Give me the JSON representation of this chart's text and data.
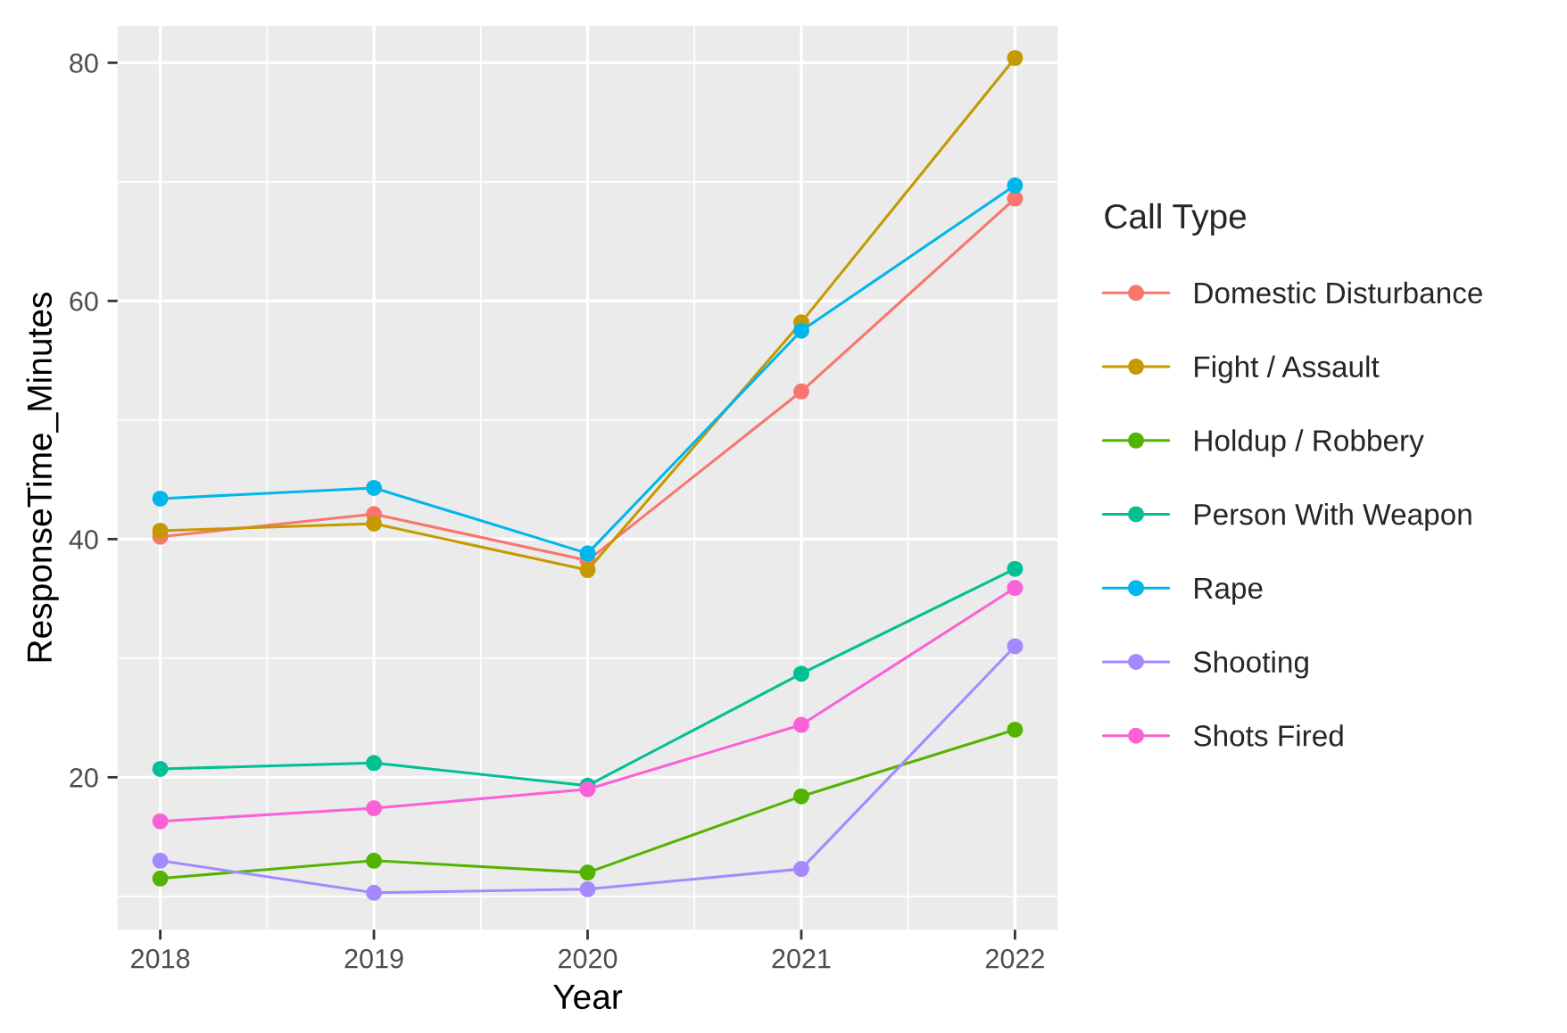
{
  "chart_data": {
    "type": "line",
    "xlabel": "Year",
    "ylabel": "ResponseTime_Minutes",
    "legend_title": "Call Type",
    "x": [
      2018,
      2019,
      2020,
      2021,
      2022
    ],
    "xlim": [
      2017.8,
      2022.2
    ],
    "xticks": [
      2018,
      2019,
      2020,
      2021,
      2022
    ],
    "ylim": [
      7.2,
      83.1
    ],
    "yticks": [
      20,
      40,
      60,
      80
    ],
    "grid": true,
    "legend": "right",
    "marker": "circle",
    "line_style": "solid",
    "series": [
      {
        "name": "Domestic Disturbance",
        "color": "#f8766d",
        "values": [
          40.2,
          42.1,
          38.2,
          52.4,
          68.6
        ]
      },
      {
        "name": "Fight / Assault",
        "color": "#c49a00",
        "values": [
          40.7,
          41.3,
          37.4,
          58.2,
          80.4
        ]
      },
      {
        "name": "Holdup / Robbery",
        "color": "#53b400",
        "values": [
          11.5,
          13.0,
          12.0,
          18.4,
          24.0
        ]
      },
      {
        "name": "Person With Weapon",
        "color": "#00c094",
        "values": [
          20.7,
          21.2,
          19.3,
          28.7,
          37.5
        ]
      },
      {
        "name": "Rape",
        "color": "#00b6eb",
        "values": [
          43.4,
          44.3,
          38.8,
          57.5,
          69.7
        ]
      },
      {
        "name": "Shooting",
        "color": "#a58aff",
        "values": [
          13.0,
          10.3,
          10.6,
          12.3,
          31.0
        ]
      },
      {
        "name": "Shots Fired",
        "color": "#fb61d7",
        "values": [
          16.3,
          17.4,
          19.0,
          24.4,
          35.9
        ]
      }
    ]
  }
}
